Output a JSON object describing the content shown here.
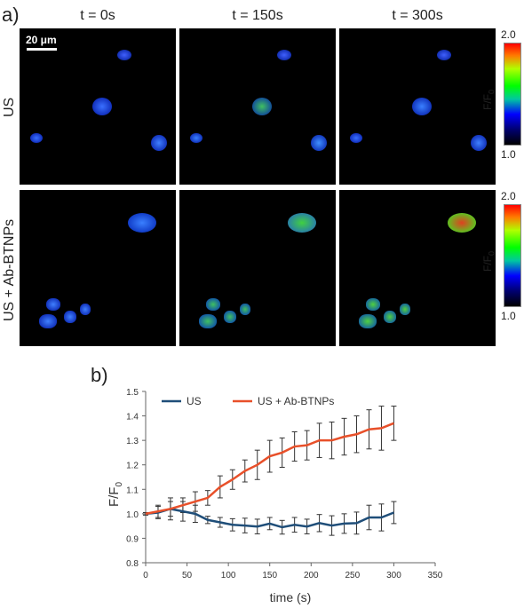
{
  "panel_a": {
    "letter": "a)",
    "time_labels": [
      "t = 0s",
      "t = 150s",
      "t = 300s"
    ],
    "row_labels": [
      "US",
      "US + Ab-BTNPs"
    ],
    "scale_bar": "20 μm",
    "colorbar": {
      "max": "2.0",
      "min": "1.0",
      "title": "F/F",
      "title_sub": "0"
    }
  },
  "panel_b": {
    "letter": "b)"
  },
  "chart_data": {
    "type": "line",
    "title": "",
    "xlabel": "time (s)",
    "ylabel": "F/F",
    "ylabel_sub": "0",
    "xlim": [
      0,
      350
    ],
    "ylim": [
      0.8,
      1.5
    ],
    "xticks": [
      0,
      50,
      100,
      150,
      200,
      250,
      300,
      350
    ],
    "yticks": [
      0.8,
      0.9,
      1.0,
      1.1,
      1.2,
      1.3,
      1.4,
      1.5
    ],
    "legend_position": "top-left",
    "grid": false,
    "series": [
      {
        "name": "US",
        "color": "#1f4e79",
        "x": [
          0,
          15,
          30,
          45,
          60,
          75,
          90,
          105,
          120,
          135,
          150,
          165,
          180,
          195,
          210,
          225,
          240,
          255,
          270,
          285,
          300
        ],
        "y": [
          1.0,
          1.005,
          1.02,
          1.01,
          1.0,
          0.975,
          0.965,
          0.955,
          0.952,
          0.948,
          0.96,
          0.945,
          0.955,
          0.948,
          0.962,
          0.952,
          0.96,
          0.962,
          0.985,
          0.985,
          1.005
        ],
        "err": [
          0.005,
          0.025,
          0.045,
          0.04,
          0.035,
          0.015,
          0.02,
          0.025,
          0.03,
          0.03,
          0.025,
          0.028,
          0.03,
          0.03,
          0.035,
          0.04,
          0.04,
          0.045,
          0.05,
          0.055,
          0.045
        ]
      },
      {
        "name": "US + Ab-BTNPs",
        "color": "#e8502a",
        "x": [
          0,
          15,
          30,
          45,
          60,
          75,
          90,
          105,
          120,
          135,
          150,
          165,
          180,
          195,
          210,
          225,
          240,
          255,
          270,
          285,
          300
        ],
        "y": [
          1.0,
          1.01,
          1.02,
          1.035,
          1.05,
          1.065,
          1.11,
          1.14,
          1.175,
          1.2,
          1.235,
          1.25,
          1.275,
          1.28,
          1.3,
          1.3,
          1.315,
          1.325,
          1.345,
          1.35,
          1.37
        ],
        "err": [
          0.005,
          0.025,
          0.03,
          0.03,
          0.04,
          0.03,
          0.045,
          0.04,
          0.045,
          0.06,
          0.065,
          0.06,
          0.06,
          0.06,
          0.07,
          0.075,
          0.075,
          0.075,
          0.08,
          0.09,
          0.07
        ]
      }
    ]
  }
}
